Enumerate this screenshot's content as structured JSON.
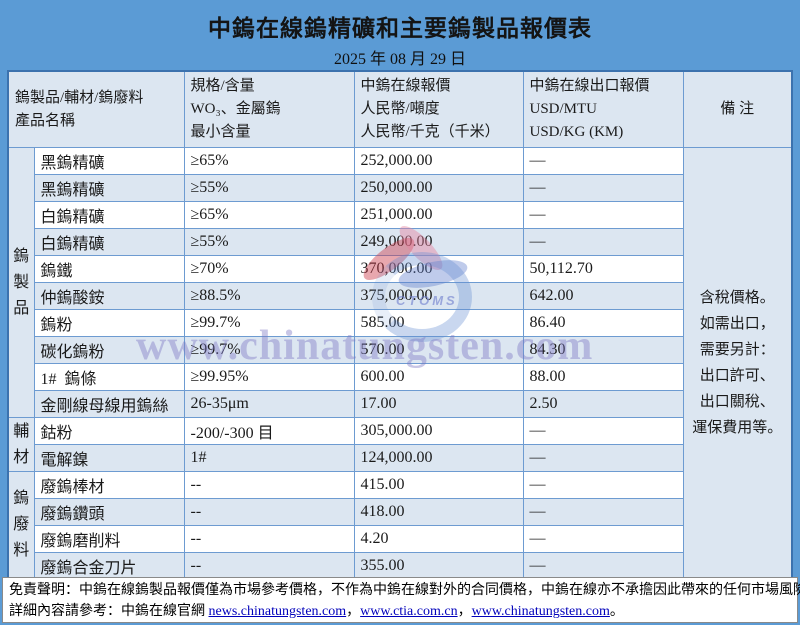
{
  "page": {
    "title": "中鎢在線鎢精礦和主要鎢製品報價表",
    "date": "2025 年 08 月 29 日"
  },
  "colors": {
    "page_bg": "#5b9bd5",
    "cell_light": "#dce6f1",
    "cell_white": "#ffffff",
    "border": "#6d9bd1",
    "outer_border": "#3c72ae",
    "link": "#0000bb",
    "title_text": "#141414",
    "watermark": "#7b76c4"
  },
  "table": {
    "header": [
      {
        "id": "product",
        "colspan": 2,
        "lines": [
          "鎢製品/輔材/鎢廢料",
          "產品名稱"
        ]
      },
      {
        "id": "spec",
        "colspan": 1,
        "lines": [
          "規格/含量",
          "WO₃、金屬鎢",
          "最小含量"
        ]
      },
      {
        "id": "cny-price",
        "colspan": 1,
        "lines": [
          "中鎢在線報價",
          "人民幣/噸度",
          "人民幣/千克（千米）"
        ]
      },
      {
        "id": "export-price",
        "colspan": 1,
        "lines": [
          "中鎢在線出口報價",
          "USD/MTU",
          "USD/KG (KM)"
        ]
      },
      {
        "id": "remark",
        "colspan": 1,
        "center": true,
        "lines": [
          "備 注"
        ]
      }
    ],
    "groups": [
      {
        "label": "鎢製品",
        "rows": [
          {
            "name": "黑鎢精礦",
            "spec": "≥65%",
            "cny": "252,000.00",
            "usd": "—"
          },
          {
            "name": "黑鎢精礦",
            "spec": "≥55%",
            "cny": "250,000.00",
            "usd": "—"
          },
          {
            "name": "白鎢精礦",
            "spec": "≥65%",
            "cny": "251,000.00",
            "usd": "—"
          },
          {
            "name": "白鎢精礦",
            "spec": "≥55%",
            "cny": "249,000.00",
            "usd": "—"
          },
          {
            "name": "鎢鐵",
            "spec": "≥70%",
            "cny": "370,000.00",
            "usd": "50,112.70"
          },
          {
            "name": "仲鎢酸銨",
            "spec": "≥88.5%",
            "cny": "375,000.00",
            "usd": "642.00"
          },
          {
            "name": "鎢粉",
            "spec": "≥99.7%",
            "cny": "585.00",
            "usd": "86.40"
          },
          {
            "name": "碳化鎢粉",
            "spec": "≥99.7%",
            "cny": "570.00",
            "usd": "84.30"
          },
          {
            "name": "1#  鎢條",
            "spec": "≥99.95%",
            "cny": "600.00",
            "usd": "88.00"
          },
          {
            "name": "金剛線母線用鎢絲",
            "spec": "26-35μm",
            "cny": "17.00",
            "usd": "2.50"
          }
        ]
      },
      {
        "label": "輔材",
        "rows": [
          {
            "name": "鈷粉",
            "spec": "-200/-300 目",
            "cny": "305,000.00",
            "usd": "—"
          },
          {
            "name": "電解鎳",
            "spec": "1#",
            "cny": "124,000.00",
            "usd": "—"
          }
        ]
      },
      {
        "label": "鎢廢料",
        "rows": [
          {
            "name": "廢鎢棒材",
            "spec": "--",
            "cny": "415.00",
            "usd": "—"
          },
          {
            "name": "廢鎢鑽頭",
            "spec": "--",
            "cny": "418.00",
            "usd": "—"
          },
          {
            "name": "廢鎢磨削料",
            "spec": "--",
            "cny": "4.20",
            "usd": "—"
          },
          {
            "name": "廢鎢合金刀片",
            "spec": "--",
            "cny": "355.00",
            "usd": "—"
          }
        ]
      }
    ],
    "remark_lines": [
      "含稅價格。",
      "如需出口，",
      "需要另計：",
      "出口許可、",
      "出口關稅、",
      "運保費用等。"
    ]
  },
  "watermark": {
    "text": "www.chinatungsten.com",
    "logo_text": "CTOMS"
  },
  "footer": {
    "line1": "免責聲明：中鎢在線鎢製品報價僅為市場參考價格，不作為中鎢在線對外的合同價格，中鎢在線亦不承擔因此帶來的任何市場風險；",
    "line2_parts": [
      {
        "type": "text",
        "text": "詳細內容請參考：中鎢在線官網 "
      },
      {
        "type": "link",
        "text": "news.chinatungsten.com",
        "name": "link-news-chinatungsten"
      },
      {
        "type": "text",
        "text": "，"
      },
      {
        "type": "link",
        "text": "www.ctia.com.cn",
        "name": "link-ctia"
      },
      {
        "type": "text",
        "text": "，"
      },
      {
        "type": "link",
        "text": "www.chinatungsten.com",
        "name": "link-chinatungsten"
      },
      {
        "type": "text",
        "text": "。"
      }
    ]
  }
}
